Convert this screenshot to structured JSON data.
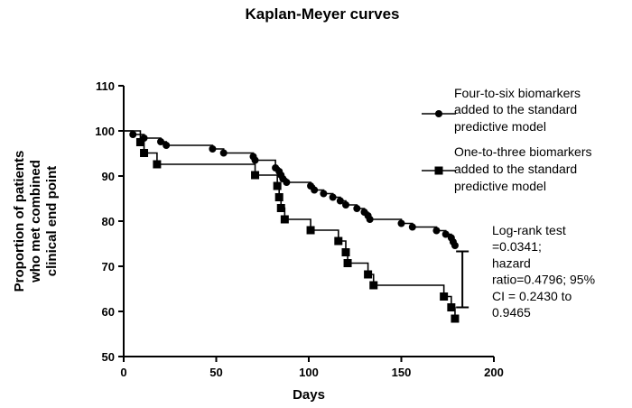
{
  "chart_data": {
    "type": "line",
    "step": true,
    "title": "Kaplan-Meyer curves",
    "xlabel": "Days",
    "ylabel_lines": [
      "Proportion of patients",
      "who met combined",
      "clinical end point"
    ],
    "xlim": [
      0,
      200
    ],
    "ylim": [
      50,
      110
    ],
    "xticks": [
      0,
      50,
      100,
      150,
      200
    ],
    "yticks": [
      50,
      60,
      70,
      80,
      90,
      100,
      110
    ],
    "grid": false,
    "legend_position": "top-right",
    "series": [
      {
        "name_lines": [
          "Four-to-six biomarkers",
          "added to the standard",
          "predictive model"
        ],
        "marker": "circle",
        "x": [
          0,
          5,
          11,
          20,
          23,
          48,
          54,
          70,
          71,
          82,
          84,
          85,
          86,
          88,
          101,
          103,
          108,
          113,
          117,
          120,
          126,
          130,
          132,
          133,
          150,
          156,
          169,
          174,
          177,
          178,
          179
        ],
        "y": [
          100,
          99.2,
          98.4,
          97.6,
          96.8,
          96,
          95.1,
          94.3,
          93.5,
          91.8,
          91,
          90.2,
          89.4,
          88.6,
          87.8,
          86.9,
          86.1,
          85.3,
          84.5,
          83.6,
          82.8,
          82,
          81.2,
          80.4,
          79.5,
          78.7,
          77.9,
          77.1,
          76.3,
          75.4,
          74.6
        ]
      },
      {
        "name_lines": [
          "One-to-three biomarkers",
          "added to the standard",
          "predictive model"
        ],
        "marker": "square",
        "x": [
          0,
          9,
          11,
          18,
          71,
          83,
          84,
          85,
          87,
          101,
          116,
          120,
          121,
          132,
          135,
          173,
          177,
          179
        ],
        "y": [
          100,
          97.5,
          95.1,
          92.6,
          90.2,
          87.8,
          85.3,
          82.9,
          80.4,
          78,
          75.6,
          73.1,
          70.7,
          68.2,
          65.8,
          63.3,
          60.9,
          58.4
        ]
      }
    ],
    "error_bar": {
      "x": 183,
      "y_low": 60.9,
      "y_high": 73.3
    },
    "annotation_lines": [
      "Log-rank test",
      "=0.0341;",
      "hazard",
      "ratio=0.4796; 95%",
      "CI = 0.2430 to",
      "0.9465"
    ]
  }
}
